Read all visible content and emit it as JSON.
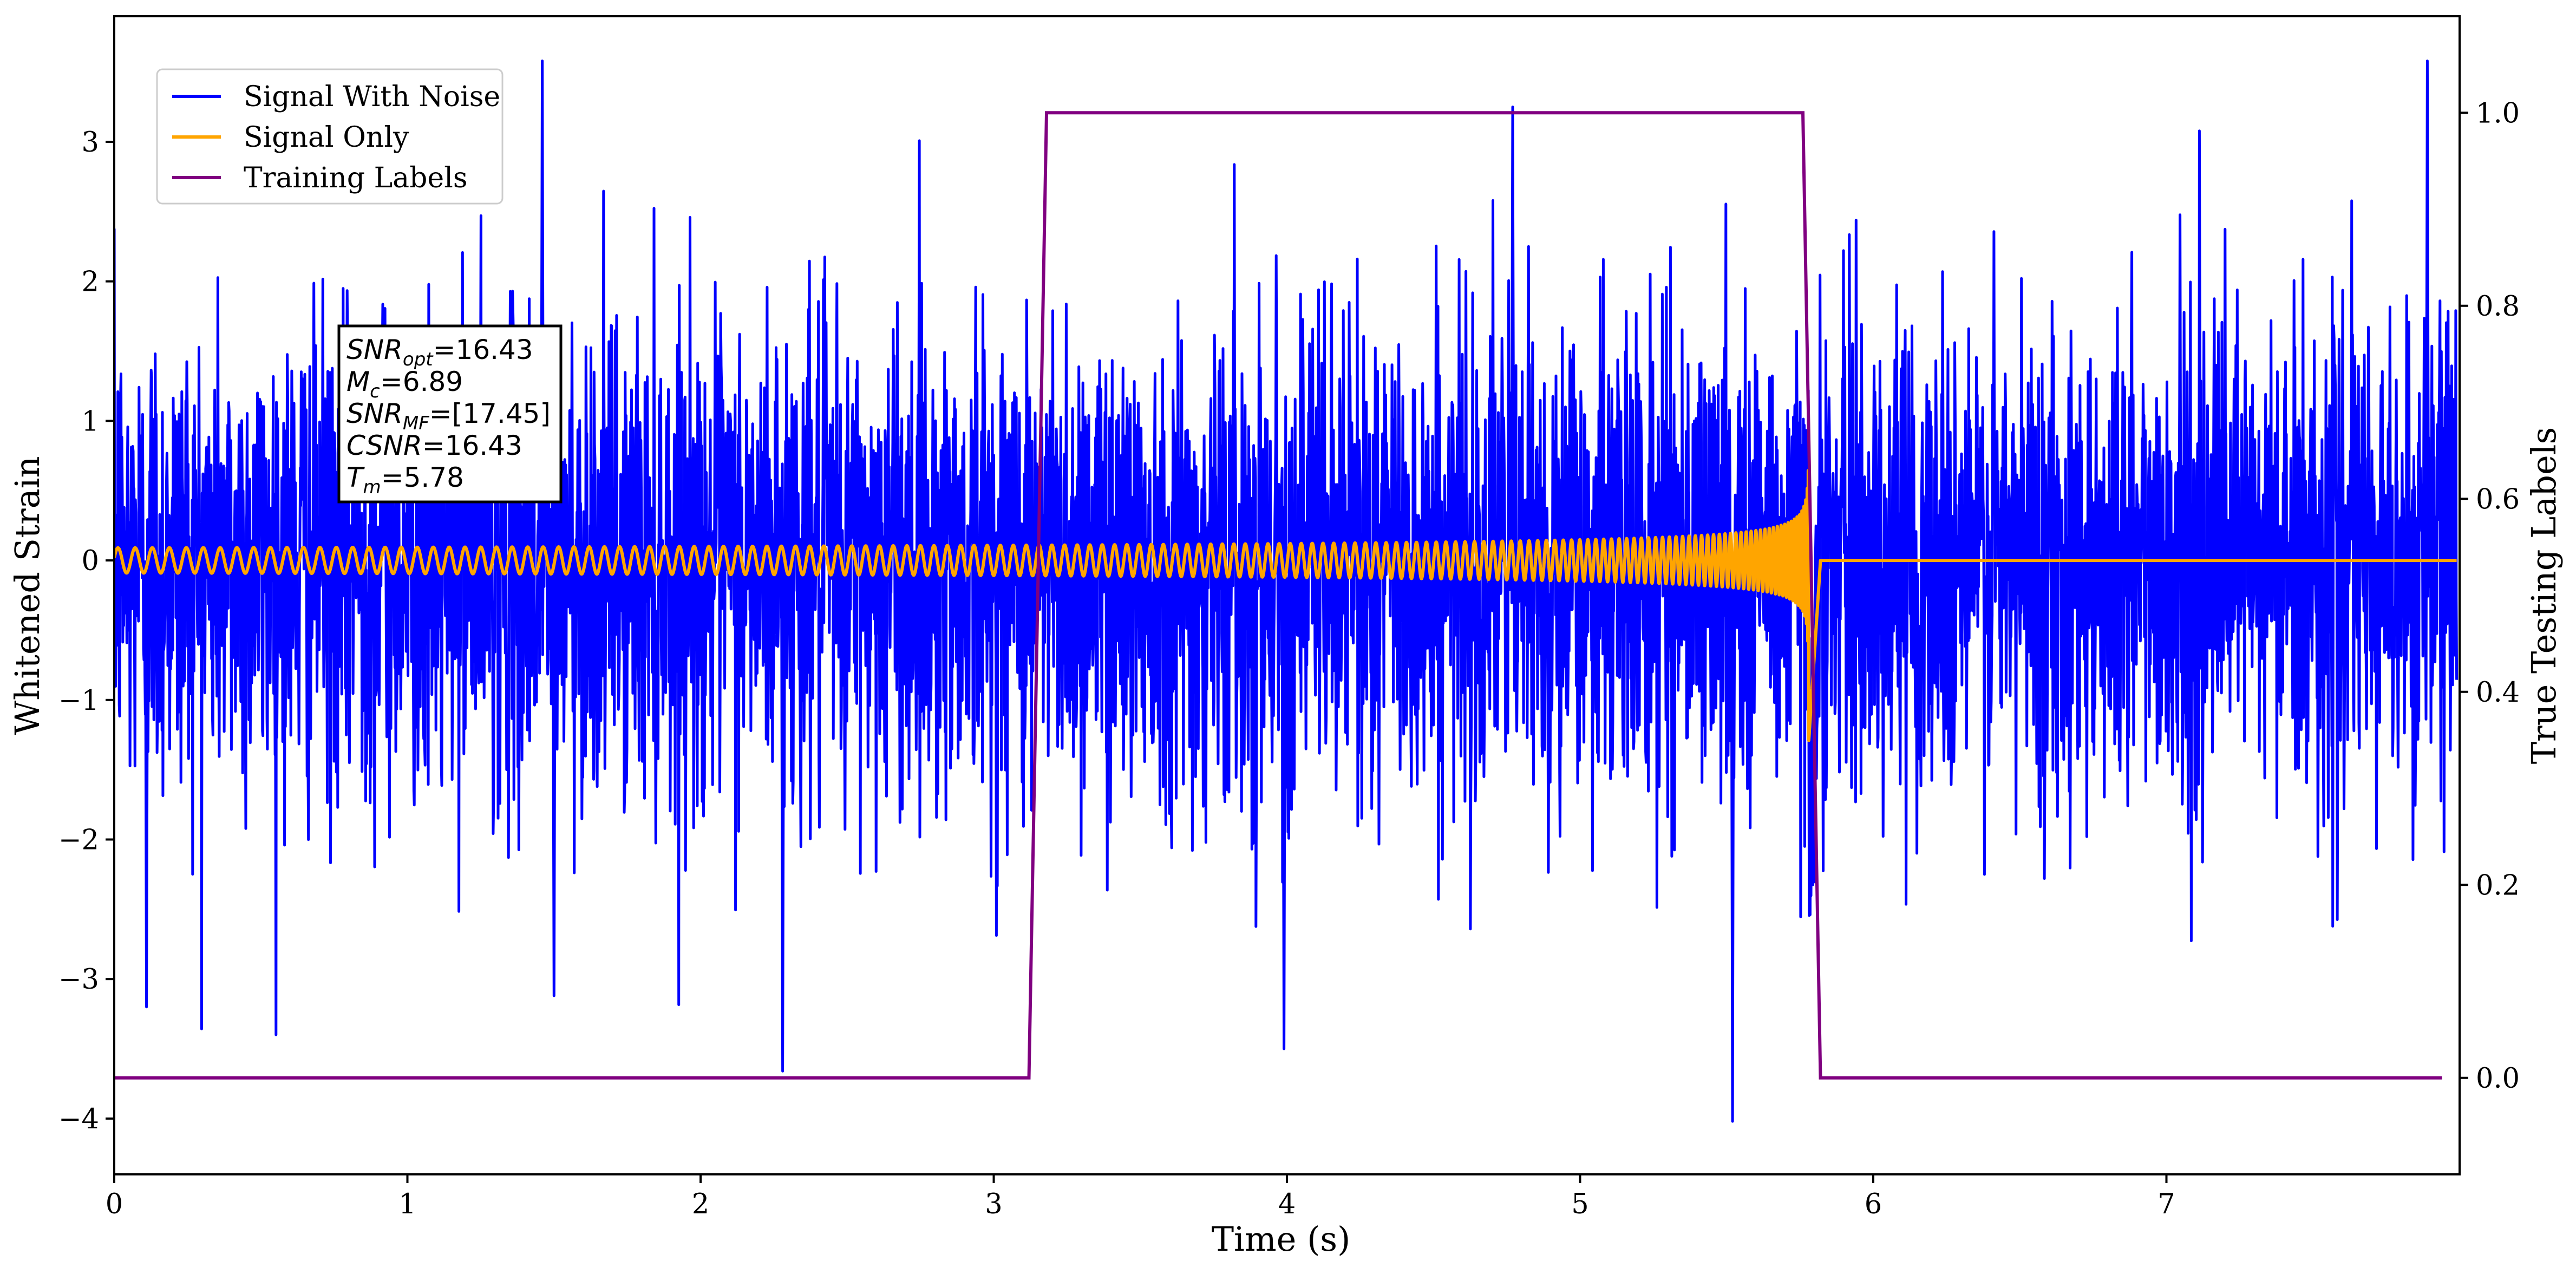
{
  "chart_data": {
    "type": "line",
    "xlabel": "Time (s)",
    "ylabel": "Whitened Strain",
    "y2label": "True Testing Labels",
    "xlim": [
      0,
      8.0
    ],
    "ylim": [
      -4.4,
      3.9
    ],
    "y2lim": [
      -0.1,
      1.1
    ],
    "x_ticks": [
      "0",
      "1",
      "2",
      "3",
      "4",
      "5",
      "6",
      "7"
    ],
    "x_tick_values": [
      0,
      1,
      2,
      3,
      4,
      5,
      6,
      7
    ],
    "y_ticks": [
      "−4",
      "−3",
      "−2",
      "−1",
      "0",
      "1",
      "2",
      "3"
    ],
    "y_tick_values": [
      -4,
      -3,
      -2,
      -1,
      0,
      1,
      2,
      3
    ],
    "y2_ticks": [
      "0.0",
      "0.2",
      "0.4",
      "0.6",
      "0.8",
      "1.0"
    ],
    "y2_tick_values": [
      0.0,
      0.2,
      0.4,
      0.6,
      0.8,
      1.0
    ],
    "legend_position": "top-left",
    "grid": false,
    "legend": [
      {
        "label": "Signal With Noise",
        "color": "#0000ff"
      },
      {
        "label": "Signal Only",
        "color": "#ffa500"
      },
      {
        "label": "Training Labels",
        "color": "#800080"
      }
    ],
    "annotation": {
      "lines": [
        {
          "sym": "SNR",
          "sub": "opt",
          "value": "=16.43"
        },
        {
          "sym": "M",
          "sub": "c",
          "value": "=6.89"
        },
        {
          "sym": "SNR",
          "sub": "MF",
          "value": "=[17.45]"
        },
        {
          "sym": "CSNR",
          "sub": "",
          "value": "=16.43"
        },
        {
          "sym": "T",
          "sub": "m",
          "value": "=5.78"
        }
      ]
    },
    "series": [
      {
        "name": "Signal With Noise",
        "color": "#0000ff",
        "description": "Gaussian-like whitened noise plus signal across full time span (0 to 8 s), amplitude mostly within about ±2",
        "noise_std": 0.85,
        "extremes": [
          {
            "x": 0.11,
            "y": -3.2
          },
          {
            "x": 1.46,
            "y": 3.58
          },
          {
            "x": 1.5,
            "y": -3.12
          },
          {
            "x": 2.28,
            "y": -3.66
          },
          {
            "x": 3.99,
            "y": -3.5
          },
          {
            "x": 4.77,
            "y": 3.25
          },
          {
            "x": 5.52,
            "y": -4.02
          },
          {
            "x": 7.89,
            "y": 3.58
          }
        ]
      },
      {
        "name": "Signal Only",
        "color": "#ffa500",
        "description": "Chirp: oscillation with growing amplitude and frequency, merging near 5.78 s then flat at 0",
        "start_amplitude": 0.09,
        "peak_amplitude": 1.35,
        "merger_time": 5.78,
        "end_time": 5.82
      },
      {
        "name": "Training Labels",
        "color": "#800080",
        "axis": "right",
        "points": [
          {
            "x": 0.0,
            "y": 0.0
          },
          {
            "x": 3.12,
            "y": 0.0
          },
          {
            "x": 3.18,
            "y": 1.0
          },
          {
            "x": 5.76,
            "y": 1.0
          },
          {
            "x": 5.82,
            "y": 0.0
          },
          {
            "x": 7.94,
            "y": 0.0
          }
        ]
      }
    ]
  }
}
